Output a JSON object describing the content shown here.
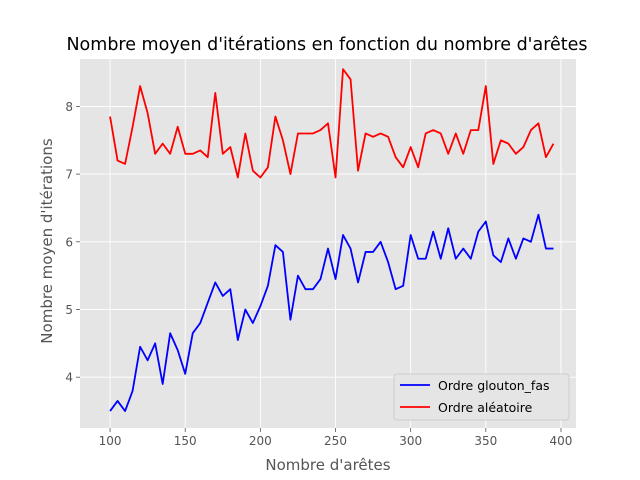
{
  "chart_data": {
    "type": "line",
    "title": "Nombre moyen d'itérations en fonction du nombre d'arêtes",
    "xlabel": "Nombre d'arêtes",
    "ylabel": "Nombre moyen d'itérations",
    "xlim": [
      80,
      410
    ],
    "ylim": [
      3.25,
      8.7
    ],
    "xticks": [
      100,
      150,
      200,
      250,
      300,
      350,
      400
    ],
    "yticks": [
      4,
      5,
      6,
      7,
      8
    ],
    "grid": true,
    "legend_position": "lower-right",
    "x": [
      100,
      105,
      110,
      115,
      120,
      125,
      130,
      135,
      140,
      145,
      150,
      155,
      160,
      165,
      170,
      175,
      180,
      185,
      190,
      195,
      200,
      205,
      210,
      215,
      220,
      225,
      230,
      235,
      240,
      245,
      250,
      255,
      260,
      265,
      270,
      275,
      280,
      285,
      290,
      295,
      300,
      305,
      310,
      315,
      320,
      325,
      330,
      335,
      340,
      345,
      350,
      355,
      360,
      365,
      370,
      375,
      380,
      385,
      390,
      395
    ],
    "series": [
      {
        "name": "Ordre glouton_fas",
        "color": "#0000ff",
        "values": [
          3.5,
          3.65,
          3.5,
          3.8,
          4.45,
          4.25,
          4.5,
          3.9,
          4.65,
          4.4,
          4.05,
          4.65,
          4.8,
          5.1,
          5.4,
          5.2,
          5.3,
          4.55,
          5.0,
          4.8,
          5.05,
          5.35,
          5.95,
          5.85,
          4.85,
          5.5,
          5.3,
          5.3,
          5.45,
          5.9,
          5.45,
          6.1,
          5.9,
          5.4,
          5.85,
          5.85,
          6.0,
          5.7,
          5.3,
          5.35,
          6.1,
          5.75,
          5.75,
          6.15,
          5.75,
          6.2,
          5.75,
          5.9,
          5.75,
          6.15,
          6.3,
          5.8,
          5.7,
          6.05,
          5.75,
          6.05,
          6.0,
          6.4,
          5.9,
          5.9
        ]
      },
      {
        "name": "Ordre aléatoire",
        "color": "#ff0000",
        "values": [
          7.85,
          7.2,
          7.15,
          7.7,
          8.3,
          7.9,
          7.3,
          7.45,
          7.3,
          7.7,
          7.3,
          7.3,
          7.35,
          7.25,
          8.2,
          7.3,
          7.4,
          6.95,
          7.6,
          7.05,
          6.95,
          7.1,
          7.85,
          7.5,
          7.0,
          7.6,
          7.6,
          7.6,
          7.65,
          7.75,
          6.95,
          8.55,
          8.4,
          7.05,
          7.6,
          7.55,
          7.6,
          7.55,
          7.25,
          7.1,
          7.4,
          7.1,
          7.6,
          7.65,
          7.6,
          7.3,
          7.6,
          7.3,
          7.65,
          7.65,
          8.3,
          7.15,
          7.5,
          7.45,
          7.3,
          7.4,
          7.65,
          7.75,
          7.25,
          7.45
        ]
      }
    ]
  },
  "colors": {
    "plot_background": "#e5e5e5",
    "grid": "#ffffff",
    "text": "#555555",
    "title": "#000000"
  }
}
